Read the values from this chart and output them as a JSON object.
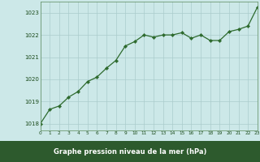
{
  "x": [
    0,
    1,
    2,
    3,
    4,
    5,
    6,
    7,
    8,
    9,
    10,
    11,
    12,
    13,
    14,
    15,
    16,
    17,
    18,
    19,
    20,
    21,
    22,
    23
  ],
  "y": [
    1018.0,
    1018.65,
    1018.8,
    1019.2,
    1019.45,
    1019.9,
    1020.1,
    1020.5,
    1020.85,
    1021.5,
    1021.7,
    1022.0,
    1021.9,
    1022.0,
    1022.0,
    1022.1,
    1021.85,
    1022.0,
    1021.75,
    1021.75,
    1022.15,
    1022.25,
    1022.4,
    1023.25
  ],
  "line_color": "#2d6a2d",
  "marker_color": "#2d6a2d",
  "bg_color": "#cce8e8",
  "grid_color": "#aacccc",
  "xlabel": "Graphe pression niveau de la mer (hPa)",
  "xlabel_color": "#ffffff",
  "xlabel_bg": "#2d5a2d",
  "ylabel_ticks": [
    1018,
    1019,
    1020,
    1021,
    1022,
    1023
  ],
  "xlim": [
    0,
    23
  ],
  "ylim": [
    1017.7,
    1023.5
  ],
  "xtick_labels": [
    "0",
    "1",
    "2",
    "3",
    "4",
    "5",
    "6",
    "7",
    "8",
    "9",
    "10",
    "11",
    "12",
    "13",
    "14",
    "15",
    "16",
    "17",
    "18",
    "19",
    "20",
    "21",
    "22",
    "23"
  ],
  "tick_color": "#1a4a1a",
  "spine_color": "#5a8a5a"
}
